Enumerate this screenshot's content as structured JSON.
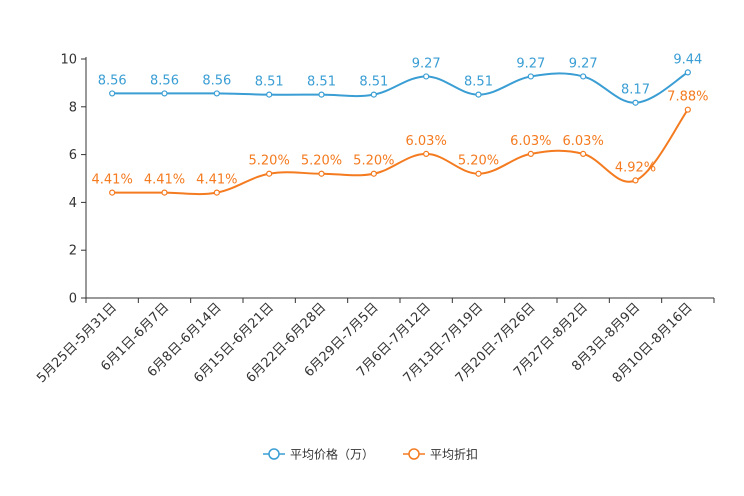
{
  "chart_data": {
    "type": "line",
    "categories": [
      "5月25日-5月31日",
      "6月1日-6月7日",
      "6月8日-6月14日",
      "6月15日-6月21日",
      "6月22日-6月28日",
      "6月29日-7月5日",
      "7月6日-7月12日",
      "7月13日-7月19日",
      "7月20日-7月26日",
      "7月27日-8月2日",
      "8月3日-8月9日",
      "8月10日-8月16日"
    ],
    "series": [
      {
        "name": "平均价格（万）",
        "color": "#3a9ed4",
        "values": [
          8.56,
          8.56,
          8.56,
          8.51,
          8.51,
          8.51,
          9.27,
          8.51,
          9.27,
          9.27,
          8.17,
          9.44
        ],
        "labels": [
          "8.56",
          "8.56",
          "8.56",
          "8.51",
          "8.51",
          "8.51",
          "9.27",
          "8.51",
          "9.27",
          "9.27",
          "8.17",
          "9.44"
        ]
      },
      {
        "name": "平均折扣",
        "color": "#f47b20",
        "values": [
          4.41,
          4.41,
          4.41,
          5.2,
          5.2,
          5.2,
          6.03,
          5.2,
          6.03,
          6.03,
          4.92,
          7.88
        ],
        "labels": [
          "4.41%",
          "4.41%",
          "4.41%",
          "5.20%",
          "5.20%",
          "5.20%",
          "6.03%",
          "5.20%",
          "6.03%",
          "6.03%",
          "4.92%",
          "7.88%"
        ]
      }
    ],
    "yticks": [
      "0",
      "2",
      "4",
      "6",
      "8",
      "10"
    ],
    "ylim": [
      0,
      10
    ],
    "legend_position": "bottom-center",
    "grid": false
  }
}
